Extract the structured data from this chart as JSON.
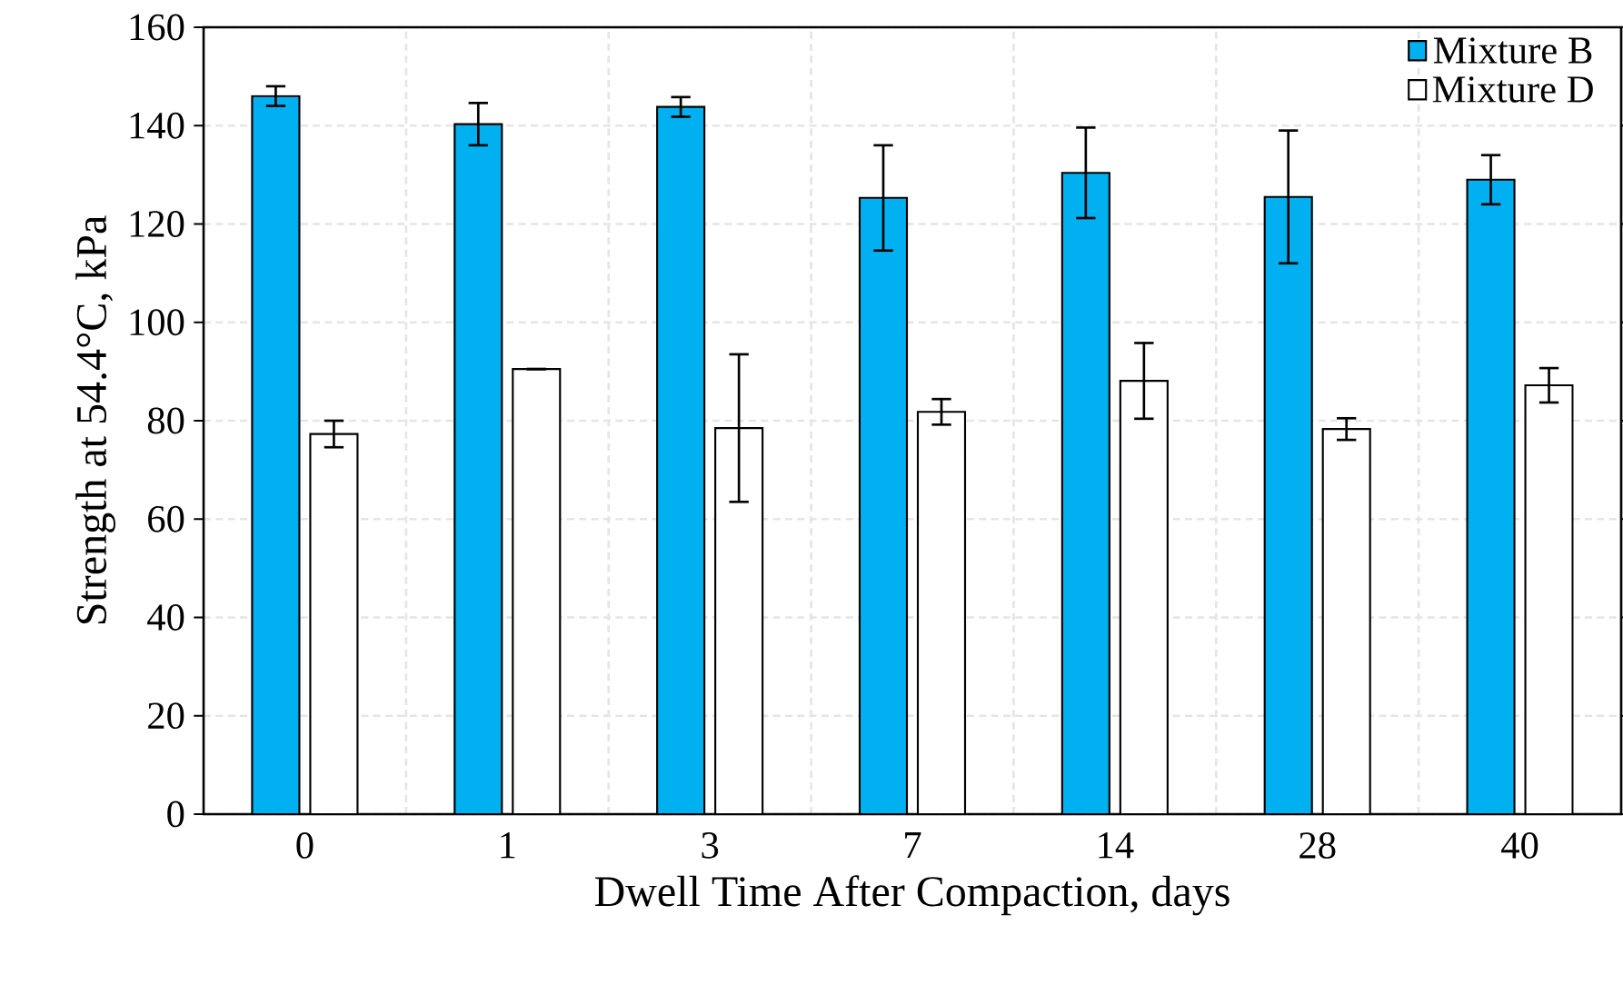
{
  "chart_data": {
    "type": "bar",
    "xlabel": "Dwell Time After Compaction, days",
    "ylabel": "Strength at 54.4°C, kPa",
    "categories": [
      "0",
      "1",
      "3",
      "7",
      "14",
      "28",
      "40"
    ],
    "series": [
      {
        "name": "Mixture B",
        "color": "#00b0f0",
        "values": [
          146,
          140.3,
          143.8,
          125.3,
          130.4,
          125.5,
          129
        ],
        "errors": [
          2,
          4.3,
          2,
          10.7,
          9.2,
          13.5,
          5
        ]
      },
      {
        "name": "Mixture D",
        "color": "#ffffff",
        "values": [
          77.3,
          90.5,
          78.5,
          81.8,
          88.1,
          78.3,
          87.2
        ],
        "errors": [
          2.7,
          0,
          15,
          2.6,
          7.7,
          2.2,
          3.5
        ]
      }
    ],
    "ylim": [
      0,
      160
    ],
    "yticks": [
      0,
      20,
      40,
      60,
      80,
      100,
      120,
      140,
      160
    ],
    "grid": true,
    "legend": "top right"
  }
}
